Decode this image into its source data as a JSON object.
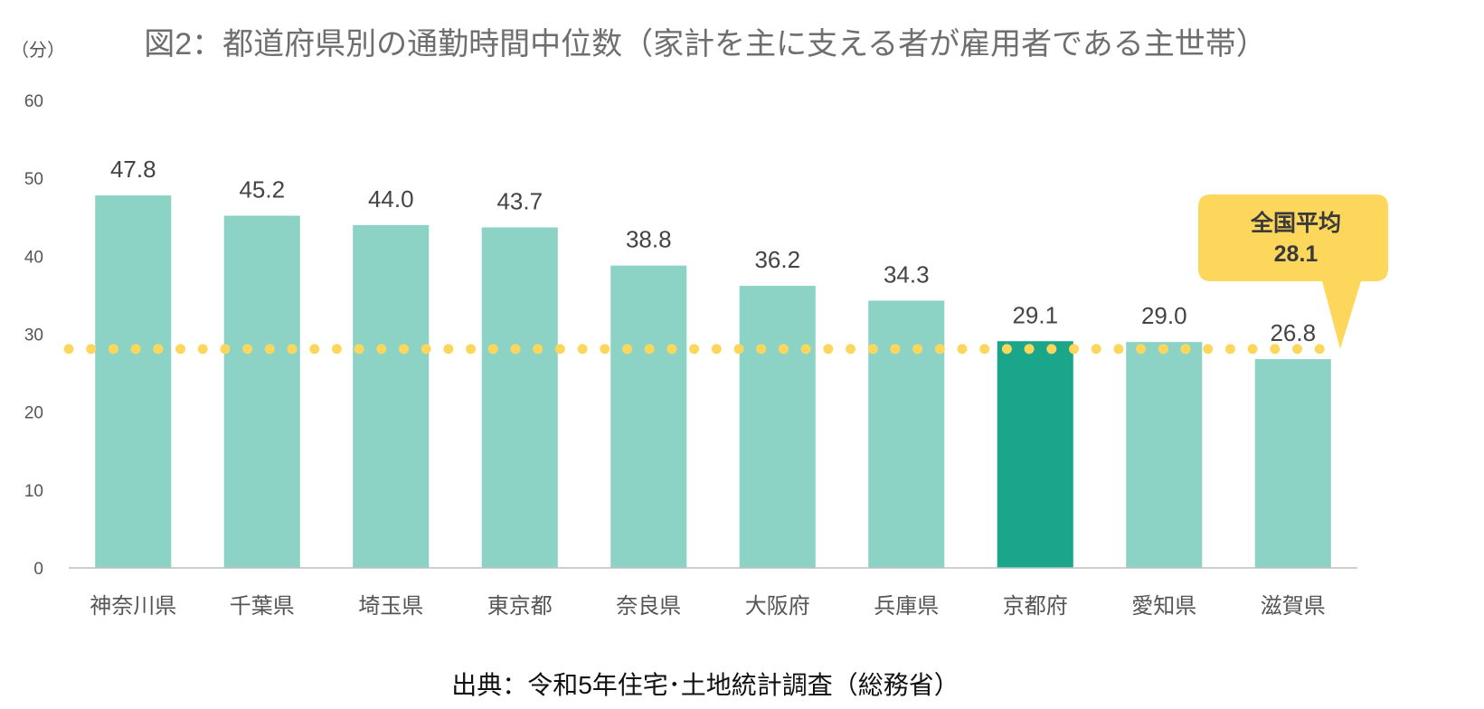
{
  "chart_data": {
    "type": "bar",
    "title": "図2：都道府県別の通勤時間中位数（家計を主に支える者が雇用者である主世帯）",
    "ylabel": "（分）",
    "xlabel": "",
    "ylim": [
      0,
      60
    ],
    "yticks": [
      0,
      10,
      20,
      30,
      40,
      50,
      60
    ],
    "grid": false,
    "categories": [
      "神奈川県",
      "千葉県",
      "埼玉県",
      "東京都",
      "奈良県",
      "大阪府",
      "兵庫県",
      "京都府",
      "愛知県",
      "滋賀県"
    ],
    "values": [
      47.8,
      45.2,
      44.0,
      43.7,
      38.8,
      36.2,
      34.3,
      29.1,
      29.0,
      26.8
    ],
    "value_labels": [
      "47.8",
      "45.2",
      "44.0",
      "43.7",
      "38.8",
      "36.2",
      "34.3",
      "29.1",
      "29.0",
      "26.8"
    ],
    "highlight_category": "京都府",
    "reference_line": {
      "label": "全国平均",
      "value": 28.1,
      "value_label": "28.1",
      "style": "dotted"
    },
    "source": "出典：令和5年住宅･土地統計調査（総務省）"
  },
  "colors": {
    "bar": "#8dd3c5",
    "bar_highlight": "#1aa68a",
    "reference_line": "#fdd75c",
    "callout_fill": "#fdd75c",
    "axis": "#bfbfbf"
  }
}
